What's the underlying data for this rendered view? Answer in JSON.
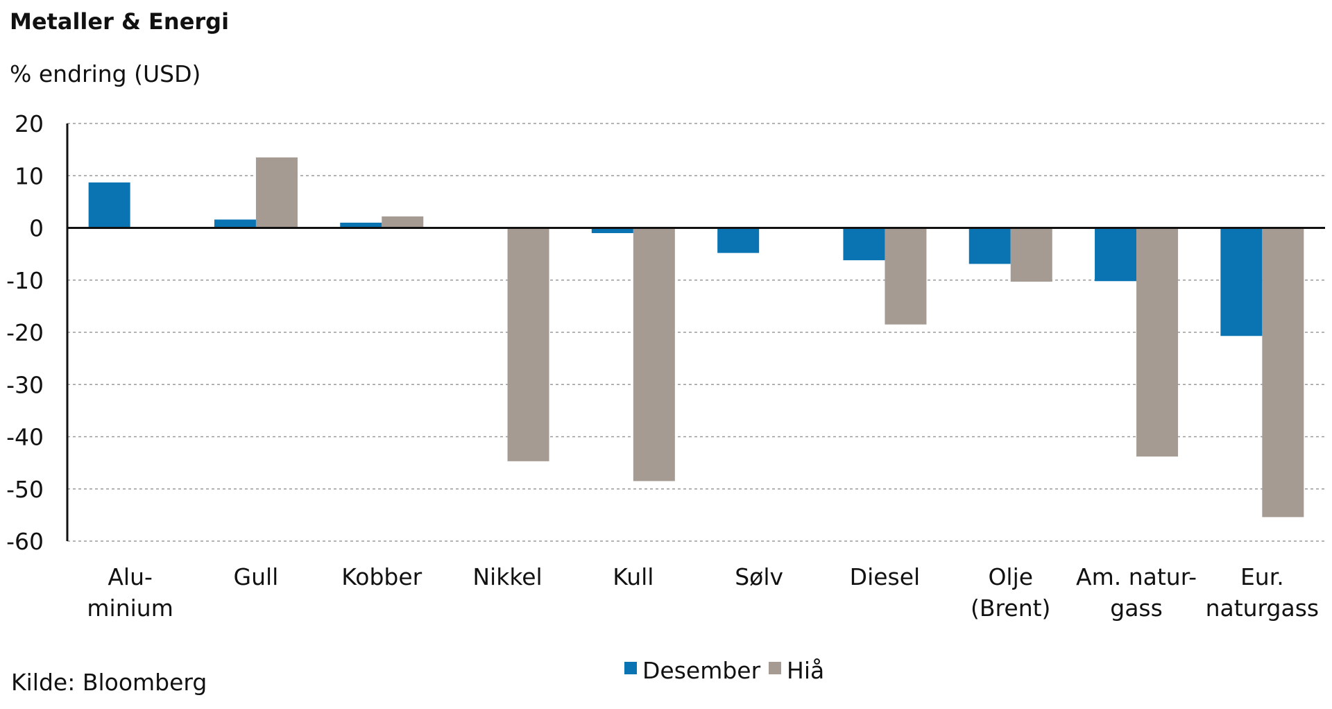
{
  "title": "Metaller & Energi",
  "subtitle": "% endring (USD)",
  "source": "Kilde: Bloomberg",
  "colors": {
    "Desember": "#0a74b3",
    "Hiå": "#a59b93",
    "axis": "#111111",
    "grid": "#9a9a9a"
  },
  "chart_data": {
    "type": "bar",
    "categories": [
      [
        "Alu-",
        "minium"
      ],
      [
        "Gull"
      ],
      [
        "Kobber"
      ],
      [
        "Nikkel"
      ],
      [
        "Kull"
      ],
      [
        "Sølv"
      ],
      [
        "Diesel"
      ],
      [
        "Olje",
        "(Brent)"
      ],
      [
        "Am. natur-",
        "gass"
      ],
      [
        "Eur.",
        "naturgass"
      ]
    ],
    "series": [
      {
        "name": "Desember",
        "values": [
          8.7,
          1.6,
          1.0,
          null,
          -1.0,
          -4.8,
          -6.2,
          -6.9,
          -10.2,
          -20.7
        ]
      },
      {
        "name": "Hiå",
        "values": [
          null,
          13.5,
          2.2,
          -44.7,
          -48.5,
          null,
          -18.5,
          -10.3,
          -43.8,
          -55.4
        ]
      }
    ],
    "ylim": [
      -60,
      20
    ],
    "yticks": [
      20,
      10,
      0,
      -10,
      -20,
      -30,
      -40,
      -50,
      -60
    ],
    "grid": true,
    "legend_position": "bottom-center"
  }
}
